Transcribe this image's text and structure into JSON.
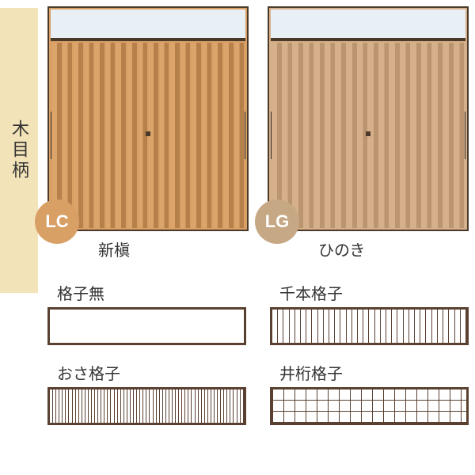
{
  "side_label": "木目柄",
  "doors": [
    {
      "code": "LC",
      "caption": "新槇",
      "frame_color": "#4a3a2a",
      "wood_base": "#d9a066",
      "slat_light": "#dba46a",
      "slat_dark": "#b6804b",
      "badge_bg": "#d9a066"
    },
    {
      "code": "LG",
      "caption": "ひのき",
      "frame_color": "#4a3a2a",
      "wood_base": "#d6b08a",
      "slat_light": "#d6b08a",
      "slat_dark": "#bb9470",
      "badge_bg": "#c7a884"
    }
  ],
  "patterns": [
    {
      "label": "格子無",
      "kind": "none"
    },
    {
      "label": "千本格子",
      "kind": "senbon"
    },
    {
      "label": "おさ格子",
      "kind": "osa"
    },
    {
      "label": "井桁格子",
      "kind": "igeta"
    }
  ],
  "style": {
    "side_bg": "#f3e3b8",
    "text_color": "#333333",
    "pattern_border": "#5a4030",
    "slat_count": 18,
    "senbon_lines": 34,
    "osa_lines": 60
  }
}
